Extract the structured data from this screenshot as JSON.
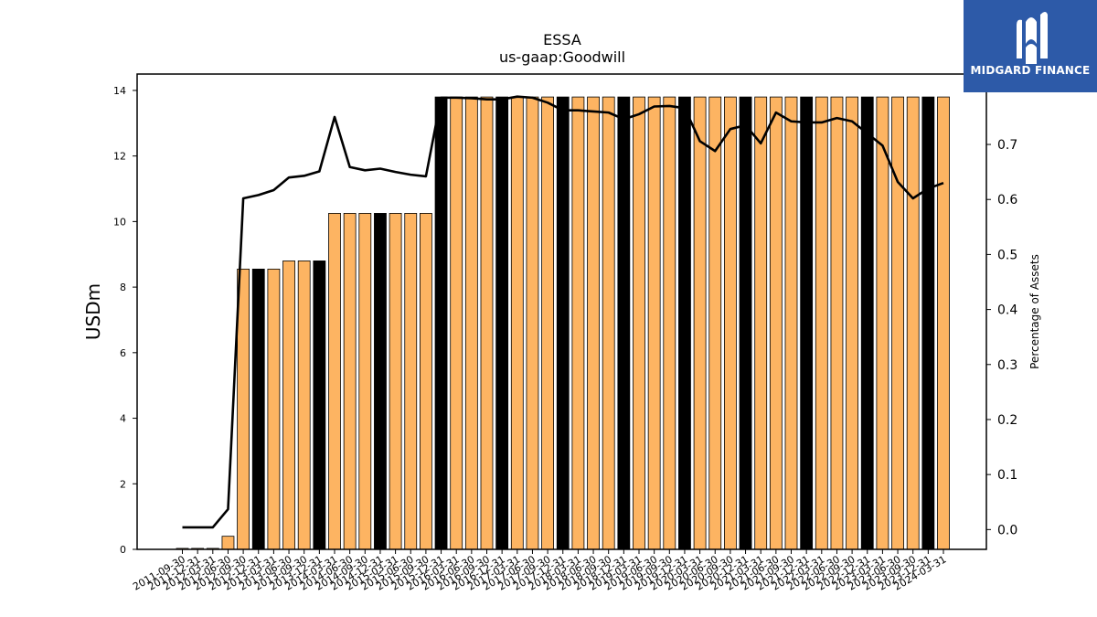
{
  "brand": {
    "name": "MIDGARD FINANCE",
    "logo_icon": "midgard-m-icon",
    "color": "#2d5aa8"
  },
  "chart_data": {
    "type": "bar",
    "title": "ESSA",
    "subtitle": "us-gaap:Goodwill",
    "ylabel": "USDm",
    "y2label": "Percentage of Assets",
    "ylim": [
      0,
      14.5
    ],
    "y2lim": [
      -0.036,
      0.828
    ],
    "yticks": [
      "0",
      "2",
      "4",
      "6",
      "8",
      "10",
      "12",
      "14"
    ],
    "y2ticks": [
      "0.0",
      "0.1",
      "0.2",
      "0.3",
      "0.4",
      "0.5",
      "0.6",
      "0.7"
    ],
    "grid": false,
    "bar_colors": {
      "default": "#fdb462",
      "highlight": "#000000"
    },
    "categories": [
      "2011-09-30",
      "2011-12-31",
      "2012-03-31",
      "2012-06-30",
      "2012-09-30",
      "2012-12-31",
      "2013-03-31",
      "2013-06-30",
      "2013-09-30",
      "2013-12-31",
      "2014-03-31",
      "2014-06-30",
      "2014-09-30",
      "2014-12-31",
      "2015-03-31",
      "2015-06-30",
      "2015-09-30",
      "2015-12-31",
      "2016-03-31",
      "2016-06-30",
      "2016-09-30",
      "2016-12-31",
      "2017-03-31",
      "2017-06-30",
      "2017-09-30",
      "2017-12-31",
      "2018-03-31",
      "2018-06-30",
      "2018-09-30",
      "2018-12-31",
      "2019-03-31",
      "2019-06-30",
      "2019-09-30",
      "2019-12-31",
      "2020-03-31",
      "2020-06-30",
      "2020-09-30",
      "2020-12-31",
      "2021-03-31",
      "2021-06-30",
      "2021-09-30",
      "2021-12-31",
      "2022-03-31",
      "2022-06-30",
      "2022-09-30",
      "2022-12-31",
      "2023-03-31",
      "2023-06-30",
      "2023-09-30",
      "2023-12-31",
      "2024-03-31"
    ],
    "xtick_labels": [
      "2011-09-30",
      "2011-12-31",
      "2012-03-31",
      "2012-06-30",
      "2012-09-30",
      "2012-12-31",
      "2013-03-31",
      "2013-06-30",
      "2013-09-30",
      "2013-12-31",
      "2014-03-31",
      "2014-06-30",
      "2014-09-30",
      "2014-12-31",
      "2015-03-31",
      "2015-06-30",
      "2015-09-30",
      "2015-12-31",
      "2016-03-31",
      "2016-06-30",
      "2016-09-30",
      "2016-12-31",
      "2017-03-31",
      "2017-06-30",
      "2017-09-30",
      "2017-12-31",
      "2018-03-31",
      "2018-06-30",
      "2018-09-30",
      "2018-12-31",
      "2019-03-31",
      "2019-06-30",
      "2019-09-30",
      "2019-12-31",
      "2020-03-31",
      "2020-06-30",
      "2020-09-30",
      "2020-12-31",
      "2021-03-31",
      "2021-06-30",
      "2021-09-30",
      "2021-12-31",
      "2022-03-31",
      "2022-06-30",
      "2022-09-30",
      "2022-12-31",
      "2023-03-31",
      "2023-06-30",
      "2023-09-30",
      "2023-12-31",
      "2024-03-31"
    ],
    "series": [
      {
        "type": "bar",
        "axis": "left",
        "values": [
          0.03,
          0.03,
          0.03,
          0.4,
          8.55,
          8.55,
          8.55,
          8.8,
          8.8,
          8.8,
          10.25,
          10.25,
          10.25,
          10.25,
          10.25,
          10.25,
          10.25,
          13.8,
          13.8,
          13.8,
          13.8,
          13.8,
          13.8,
          13.8,
          13.8,
          13.8,
          13.8,
          13.8,
          13.8,
          13.8,
          13.8,
          13.8,
          13.8,
          13.8,
          13.8,
          13.8,
          13.8,
          13.8,
          13.8,
          13.8,
          13.8,
          13.8,
          13.8,
          13.8,
          13.8,
          13.8,
          13.8,
          13.8,
          13.8,
          13.8,
          13.8
        ],
        "highlight": [
          false,
          false,
          false,
          false,
          false,
          true,
          false,
          false,
          false,
          true,
          false,
          false,
          false,
          true,
          false,
          false,
          false,
          true,
          false,
          false,
          false,
          true,
          false,
          false,
          false,
          true,
          false,
          false,
          false,
          true,
          false,
          false,
          false,
          true,
          false,
          false,
          false,
          true,
          false,
          false,
          false,
          true,
          false,
          false,
          false,
          true,
          false,
          false,
          false,
          true,
          false
        ]
      },
      {
        "type": "line",
        "axis": "right",
        "color": "#000000",
        "values": [
          0.004,
          0.004,
          0.004,
          0.037,
          0.602,
          0.608,
          0.617,
          0.64,
          0.643,
          0.651,
          0.75,
          0.659,
          0.653,
          0.656,
          0.65,
          0.645,
          0.642,
          0.785,
          0.785,
          0.784,
          0.782,
          0.782,
          0.787,
          0.785,
          0.776,
          0.762,
          0.762,
          0.76,
          0.758,
          0.746,
          0.755,
          0.769,
          0.77,
          0.766,
          0.706,
          0.688,
          0.728,
          0.735,
          0.702,
          0.758,
          0.742,
          0.74,
          0.74,
          0.748,
          0.742,
          0.72,
          0.698,
          0.632,
          0.602,
          0.62,
          0.63
        ]
      }
    ]
  }
}
